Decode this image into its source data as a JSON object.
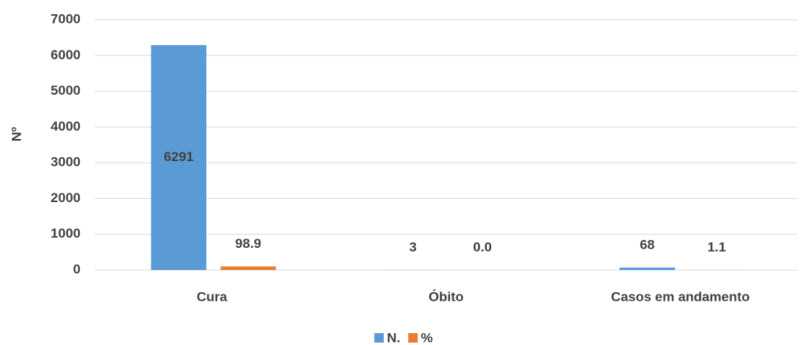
{
  "chart_data": {
    "type": "bar",
    "ylabel": "Nº",
    "categories": [
      "Cura",
      "Óbito",
      "Casos em andamento"
    ],
    "series": [
      {
        "name": "N.",
        "color": "#5b9bd5",
        "values": [
          6291,
          3,
          68
        ]
      },
      {
        "name": "%",
        "color": "#ed7d31",
        "values": [
          98.9,
          0.0,
          1.1
        ],
        "value_labels": [
          "98.9",
          "0.0",
          "1.1"
        ]
      }
    ],
    "ylim": [
      0,
      7000
    ],
    "yticks": [
      0,
      1000,
      2000,
      3000,
      4000,
      5000,
      6000,
      7000
    ],
    "grid": true,
    "legend": "bottom"
  }
}
